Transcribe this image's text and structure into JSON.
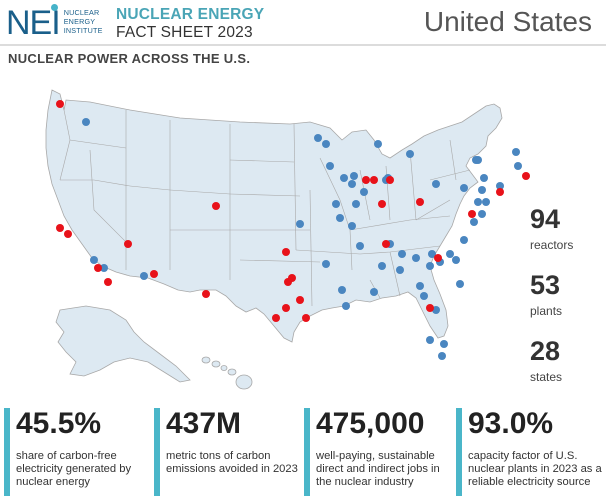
{
  "header": {
    "logo_mark": "NEI",
    "logo_lines": [
      "NUCLEAR",
      "ENERGY",
      "INSTITUTE"
    ],
    "title_line1": "NUCLEAR ENERGY",
    "title_line2": "FACT SHEET 2023",
    "country": "United States"
  },
  "section_title": "NUCLEAR POWER ACROSS THE U.S.",
  "map": {
    "land_color": "#dde9f2",
    "border_color": "#a8a8a8",
    "plant_color": "#4a86c0",
    "highlight_color": "#e8121a"
  },
  "stats": [
    {
      "value": "94",
      "label": "reactors"
    },
    {
      "value": "53",
      "label": "plants"
    },
    {
      "value": "28",
      "label": "states"
    }
  ],
  "metrics": [
    {
      "value": "45.5%",
      "desc": "share of carbon-free electricity generated by nuclear energy"
    },
    {
      "value": "437M",
      "desc": "metric tons of carbon emissions avoided in 2023"
    },
    {
      "value": "475,000",
      "desc": "well-paying, sustainable direct and indirect jobs in the nuclear industry"
    },
    {
      "value": "93.0%",
      "desc": "capacity factor of U.S. nuclear plants in 2023 as a reliable electricity source"
    }
  ],
  "accent_color": "#4ab6c9"
}
